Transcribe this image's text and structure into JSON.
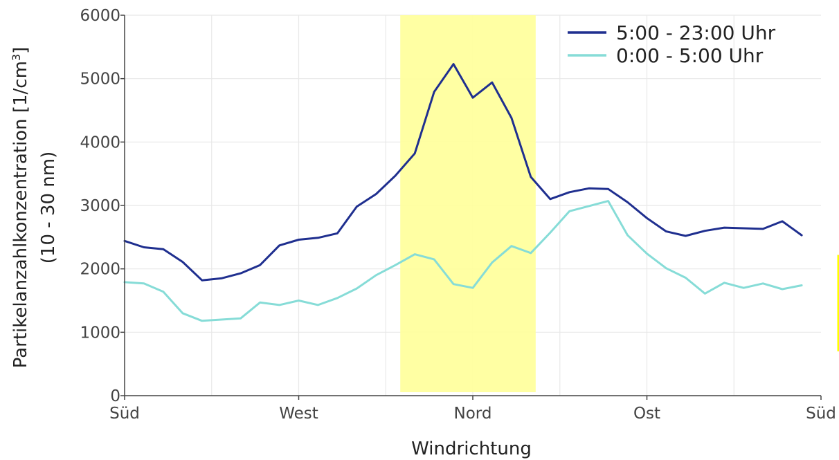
{
  "chart_data": {
    "type": "line",
    "xlabel": "Windrichtung",
    "ylabel_line1": "Partikelanzahlkonzentration [1/cm",
    "ylabel_sup": "3",
    "ylabel_line1_end": "]",
    "ylabel_line2": "(10 - 30 nm)",
    "x_tick_labels": [
      "Süd",
      "West",
      "Nord",
      "Ost",
      "Süd"
    ],
    "x_tick_positions": [
      0,
      90,
      180,
      270,
      360
    ],
    "xlim": [
      0,
      360
    ],
    "ylim": [
      0,
      6000
    ],
    "y_ticks": [
      0,
      1000,
      2000,
      3000,
      4000,
      5000,
      6000
    ],
    "grid": true,
    "legend_position": "top-right",
    "highlight": {
      "x_range": [
        142.5,
        212.5
      ],
      "color": "#ffff99"
    },
    "x": [
      0,
      10,
      20,
      30,
      40,
      50,
      60,
      70,
      80,
      90,
      100,
      110,
      120,
      130,
      140,
      150,
      160,
      170,
      180,
      190,
      200,
      210,
      220,
      230,
      240,
      250,
      260,
      270,
      280,
      290,
      300,
      310,
      320,
      330,
      340,
      350
    ],
    "series": [
      {
        "name": "5:00 - 23:00 Uhr",
        "color": "#1f2f8f",
        "values": [
          2440,
          2340,
          2310,
          2110,
          1820,
          1850,
          1930,
          2060,
          2370,
          2460,
          2490,
          2560,
          2980,
          3180,
          3470,
          3820,
          4790,
          5230,
          4700,
          4940,
          4380,
          3450,
          3100,
          3210,
          3270,
          3260,
          3050,
          2800,
          2590,
          2520,
          2600,
          2650,
          2640,
          2630,
          2750,
          2530
        ]
      },
      {
        "name": "0:00 - 5:00 Uhr",
        "color": "#86dcd7",
        "values": [
          1790,
          1770,
          1640,
          1300,
          1180,
          1200,
          1220,
          1470,
          1430,
          1500,
          1430,
          1540,
          1690,
          1900,
          2060,
          2230,
          2150,
          1760,
          1700,
          2100,
          2360,
          2250,
          2570,
          2910,
          2990,
          3070,
          2530,
          2240,
          2010,
          1860,
          1610,
          1780,
          1700,
          1770,
          1680,
          1740
        ]
      }
    ],
    "annotations": [
      {
        "type": "vertical-line",
        "color": "#ffff00",
        "y_range": [
          700,
          2220
        ]
      }
    ]
  }
}
